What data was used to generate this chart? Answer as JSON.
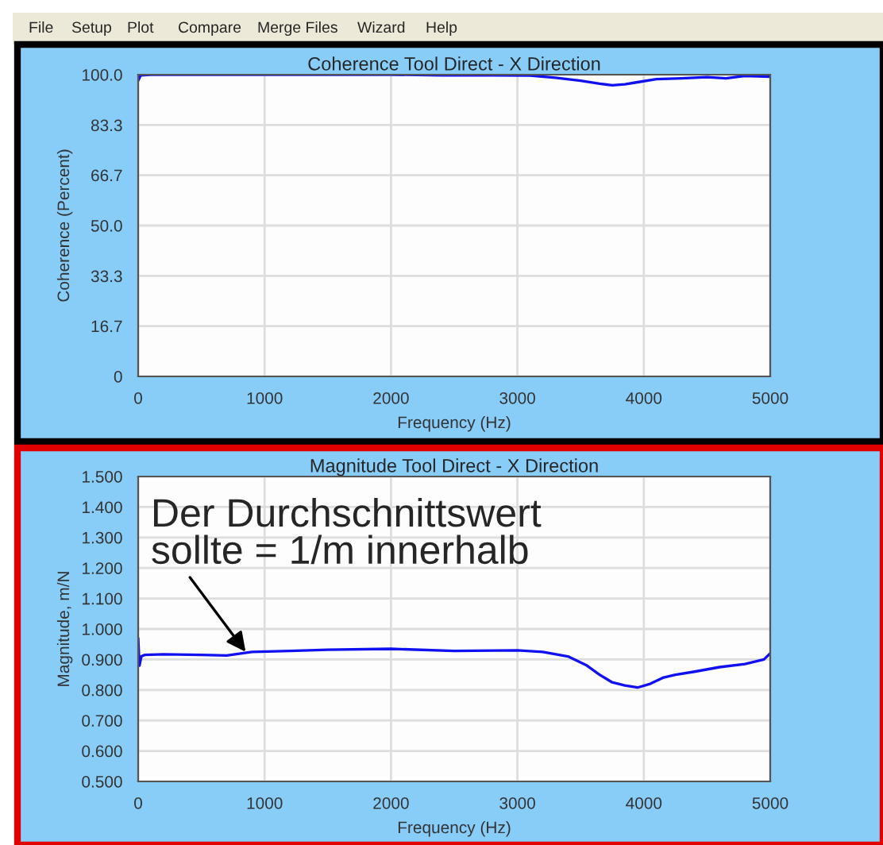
{
  "chart_data": [
    {
      "type": "other",
      "annotations": [
        "File",
        "Setup",
        "Plot",
        "Compare",
        "Merge Files",
        "Wizard",
        "Help"
      ]
    },
    {
      "type": "line",
      "title": "Coherence Tool Direct - X Direction",
      "xlabel": "Frequency (Hz)",
      "ylabel": "Coherence (Percent)",
      "xlim": [
        0,
        5000
      ],
      "xticks": [
        0,
        1000,
        2000,
        3000,
        4000,
        5000
      ],
      "ylim": [
        0,
        100
      ],
      "yticks": [
        0,
        16.7,
        33.3,
        {
          "value": 50,
          "label": "50.0"
        },
        66.7,
        83.3,
        {
          "value": 100,
          "label": "100.0"
        }
      ],
      "grid": true,
      "line_style": "solid",
      "marker": "none",
      "series": [
        {
          "color": "#1010f0",
          "x": [
            0,
            20,
            100,
            500,
            1000,
            1500,
            2000,
            2400,
            2800,
            3100,
            3300,
            3500,
            3650,
            3750,
            3850,
            3950,
            4100,
            4300,
            4500,
            4650,
            4800,
            5000
          ],
          "values": [
            98,
            99.8,
            100,
            100,
            100,
            100,
            100,
            99.8,
            99.8,
            99.7,
            99,
            98,
            97,
            96.5,
            96.8,
            97.5,
            98.5,
            98.8,
            99.2,
            98.8,
            99.6,
            99.3
          ]
        }
      ]
    },
    {
      "type": "line",
      "title": "Magnitude Tool Direct - X Direction",
      "xlabel": "Frequency (Hz)",
      "ylabel": "Magnitude, m/N",
      "xlim": [
        0,
        5000
      ],
      "xticks": [
        0,
        1000,
        2000,
        3000,
        4000,
        5000
      ],
      "ylim": [
        0.5,
        1.5
      ],
      "yticks": [
        {
          "value": 0.5,
          "label": "0.500"
        },
        {
          "value": 0.6,
          "label": "0.600"
        },
        {
          "value": 0.7,
          "label": "0.700"
        },
        {
          "value": 0.8,
          "label": "0.800"
        },
        {
          "value": 0.9,
          "label": "0.900"
        },
        {
          "value": 1.0,
          "label": "1.000"
        },
        {
          "value": 1.1,
          "label": "1.100"
        },
        {
          "value": 1.2,
          "label": "1.200"
        },
        {
          "value": 1.3,
          "label": "1.300"
        },
        {
          "value": 1.4,
          "label": "1.400"
        },
        {
          "value": 1.5,
          "label": "1.500"
        }
      ],
      "grid": true,
      "line_style": "solid",
      "marker": "none",
      "annotations": [
        {
          "text": "Der Durchschnittswert\nsollte = 1/m innerhalb",
          "x": 850,
          "y": 0.925
        }
      ],
      "series": [
        {
          "color": "#1010f0",
          "x": [
            0,
            10,
            25,
            50,
            200,
            500,
            700,
            900,
            1200,
            1500,
            2000,
            2500,
            3000,
            3200,
            3400,
            3550,
            3650,
            3750,
            3850,
            3950,
            4050,
            4150,
            4250,
            4400,
            4600,
            4800,
            4950,
            5000
          ],
          "values": [
            0.97,
            0.88,
            0.91,
            0.915,
            0.917,
            0.915,
            0.913,
            0.925,
            0.928,
            0.932,
            0.935,
            0.928,
            0.93,
            0.925,
            0.91,
            0.88,
            0.85,
            0.825,
            0.815,
            0.808,
            0.82,
            0.84,
            0.85,
            0.86,
            0.875,
            0.885,
            0.9,
            0.92
          ]
        }
      ]
    }
  ]
}
